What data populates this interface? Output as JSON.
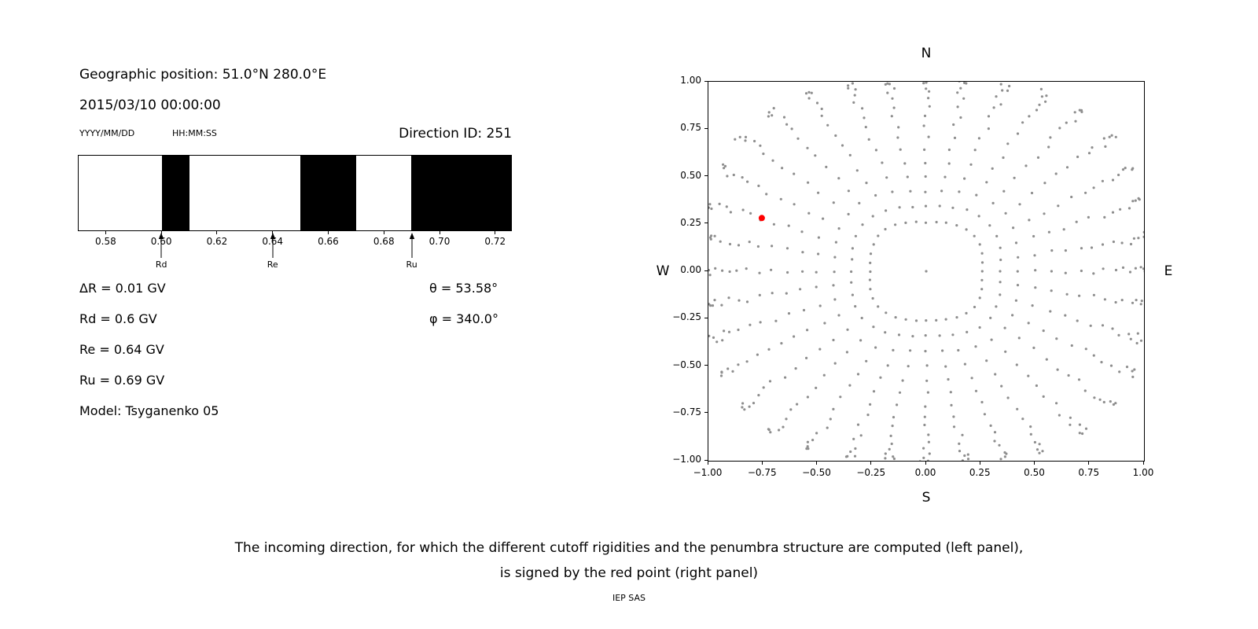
{
  "header": {
    "geo": "Geographic position: 51.0°N 280.0°E",
    "datetime": "2015/03/10 00:00:00",
    "date_format": "YYYY/MM/DD",
    "time_format": "HH:MM:SS",
    "direction_id": "Direction ID: 251"
  },
  "info": {
    "lines": [
      "ΔR = 0.01 GV",
      "Rd = 0.6 GV",
      "Re = 0.64 GV",
      "Ru = 0.69 GV",
      "Model: Tsyganenko 05"
    ],
    "angles": [
      "θ = 53.58°",
      "φ = 340.0°"
    ]
  },
  "caption": {
    "line1": "The incoming direction, for which the different cutoff rigidities and the penumbra structure are computed (left panel),",
    "line2": "is signed by the red point (right panel)"
  },
  "footer": "IEP SAS",
  "chart_data": [
    {
      "id": "penumbra",
      "type": "bar",
      "title": "Penumbra structure",
      "x_range": [
        0.57,
        0.726
      ],
      "x_ticks": [
        "0.58",
        "0.60",
        "0.62",
        "0.64",
        "0.66",
        "0.68",
        "0.70",
        "0.72"
      ],
      "x_tick_values": [
        0.58,
        0.6,
        0.62,
        0.64,
        0.66,
        0.68,
        0.7,
        0.72
      ],
      "forbidden_bands": [
        [
          0.6,
          0.61
        ],
        [
          0.65,
          0.67
        ],
        [
          0.69,
          0.726
        ]
      ],
      "band_color": "#000000",
      "markers": [
        {
          "label": "Rd",
          "value": 0.6
        },
        {
          "label": "Re",
          "value": 0.64
        },
        {
          "label": "Ru",
          "value": 0.69
        }
      ]
    },
    {
      "id": "incoming-directions",
      "type": "scatter",
      "xlim": [
        -1,
        1
      ],
      "ylim": [
        -1,
        1
      ],
      "x_ticks": [
        "−1.00",
        "−0.75",
        "−0.50",
        "−0.25",
        "0.00",
        "0.25",
        "0.50",
        "0.75",
        "1.00"
      ],
      "x_tick_values": [
        -1,
        -0.75,
        -0.5,
        -0.25,
        0,
        0.25,
        0.5,
        0.75,
        1
      ],
      "y_ticks": [
        "1.00",
        "0.75",
        "0.50",
        "0.25",
        "0.00",
        "−0.25",
        "−0.50",
        "−0.75",
        "−1.00"
      ],
      "y_tick_values": [
        1,
        0.75,
        0.5,
        0.25,
        0,
        -0.25,
        -0.5,
        -0.75,
        -1
      ],
      "compass": {
        "top": "N",
        "bottom": "S",
        "left": "W",
        "right": "E"
      },
      "grid_points": {
        "azimuth_start_deg": 0,
        "azimuth_step_deg": 10,
        "azimuth_count": 36,
        "zenith_start_deg": 15,
        "zenith_step_deg": 5,
        "zenith_count": 16,
        "radius_mapping": "sin(zenith)",
        "diagonal_stretch": 0.12,
        "wiggle_deg": 1.4,
        "center_dot": true,
        "dot_color": "#8e8e8e",
        "dot_radius_px": 1.6
      },
      "red_point": {
        "x": -0.755,
        "y": 0.281,
        "color": "#ff0000",
        "radius_px": 4
      }
    }
  ]
}
